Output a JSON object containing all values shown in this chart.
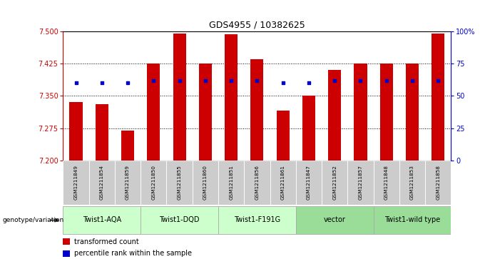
{
  "title": "GDS4955 / 10382625",
  "samples": [
    "GSM1211849",
    "GSM1211854",
    "GSM1211859",
    "GSM1211850",
    "GSM1211855",
    "GSM1211860",
    "GSM1211851",
    "GSM1211856",
    "GSM1211861",
    "GSM1211847",
    "GSM1211852",
    "GSM1211857",
    "GSM1211848",
    "GSM1211853",
    "GSM1211858"
  ],
  "bar_values": [
    7.335,
    7.33,
    7.27,
    7.425,
    7.495,
    7.425,
    7.492,
    7.435,
    7.315,
    7.35,
    7.41,
    7.425,
    7.425,
    7.425,
    7.495
  ],
  "percentile_values": [
    60,
    60,
    60,
    62,
    62,
    62,
    62,
    62,
    60,
    60,
    62,
    62,
    62,
    62,
    62
  ],
  "ylim_left": [
    7.2,
    7.5
  ],
  "ylim_right": [
    0,
    100
  ],
  "yticks_left": [
    7.2,
    7.275,
    7.35,
    7.425,
    7.5
  ],
  "yticks_right": [
    0,
    25,
    50,
    75,
    100
  ],
  "bar_color": "#cc0000",
  "dot_color": "#0000cc",
  "groups": [
    {
      "label": "Twist1-AQA",
      "indices": [
        0,
        1,
        2
      ],
      "color": "#ccffcc"
    },
    {
      "label": "Twist1-DQD",
      "indices": [
        3,
        4,
        5
      ],
      "color": "#ccffcc"
    },
    {
      "label": "Twist1-F191G",
      "indices": [
        6,
        7,
        8
      ],
      "color": "#ccffcc"
    },
    {
      "label": "vector",
      "indices": [
        9,
        10,
        11
      ],
      "color": "#99dd99"
    },
    {
      "label": "Twist1-wild type",
      "indices": [
        12,
        13,
        14
      ],
      "color": "#99dd99"
    }
  ],
  "legend_items": [
    {
      "label": "transformed count",
      "color": "#cc0000"
    },
    {
      "label": "percentile rank within the sample",
      "color": "#0000cc"
    }
  ],
  "left_tick_color": "#cc0000",
  "right_tick_color": "#0000cc",
  "sample_bg_color": "#cccccc",
  "bar_width": 0.5,
  "fig_width": 6.8,
  "fig_height": 3.63,
  "dpi": 100
}
